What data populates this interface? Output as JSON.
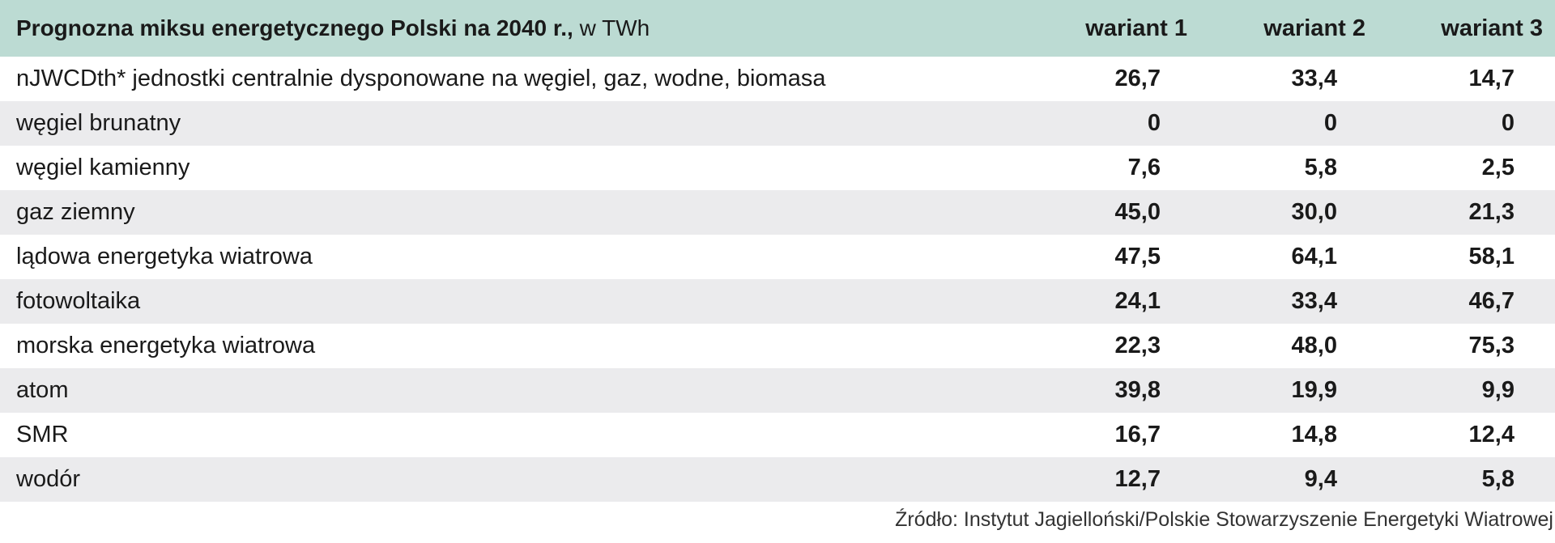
{
  "header": {
    "title": "Prognozna miksu energetycznego Polski na 2040 r.,",
    "unit": "w TWh",
    "columns": [
      "wariant 1",
      "wariant 2",
      "wariant 3"
    ]
  },
  "table": {
    "rows": [
      [
        "nJWCDth* jednostki centralnie dysponowane na węgiel, gaz, wodne, biomasa",
        "26,7",
        "33,4",
        "14,7"
      ],
      [
        "węgiel brunatny",
        "0",
        "0",
        "0"
      ],
      [
        "węgiel kamienny",
        "7,6",
        "5,8",
        "2,5"
      ],
      [
        "gaz ziemny",
        "45,0",
        "30,0",
        "21,3"
      ],
      [
        "lądowa energetyka wiatrowa",
        "47,5",
        "64,1",
        "58,1"
      ],
      [
        "fotowoltaika",
        "24,1",
        "33,4",
        "46,7"
      ],
      [
        "morska energetyka wiatrowa",
        "22,3",
        "48,0",
        "75,3"
      ],
      [
        "atom",
        "39,8",
        "19,9",
        "9,9"
      ],
      [
        "SMR",
        "16,7",
        "14,8",
        "12,4"
      ],
      [
        "wodór",
        "12,7",
        "9,4",
        "5,8"
      ]
    ]
  },
  "source": "Źródło: Instytut Jagielloński/Polskie Stowarzyszenie Energetyki Wiatrowej"
}
